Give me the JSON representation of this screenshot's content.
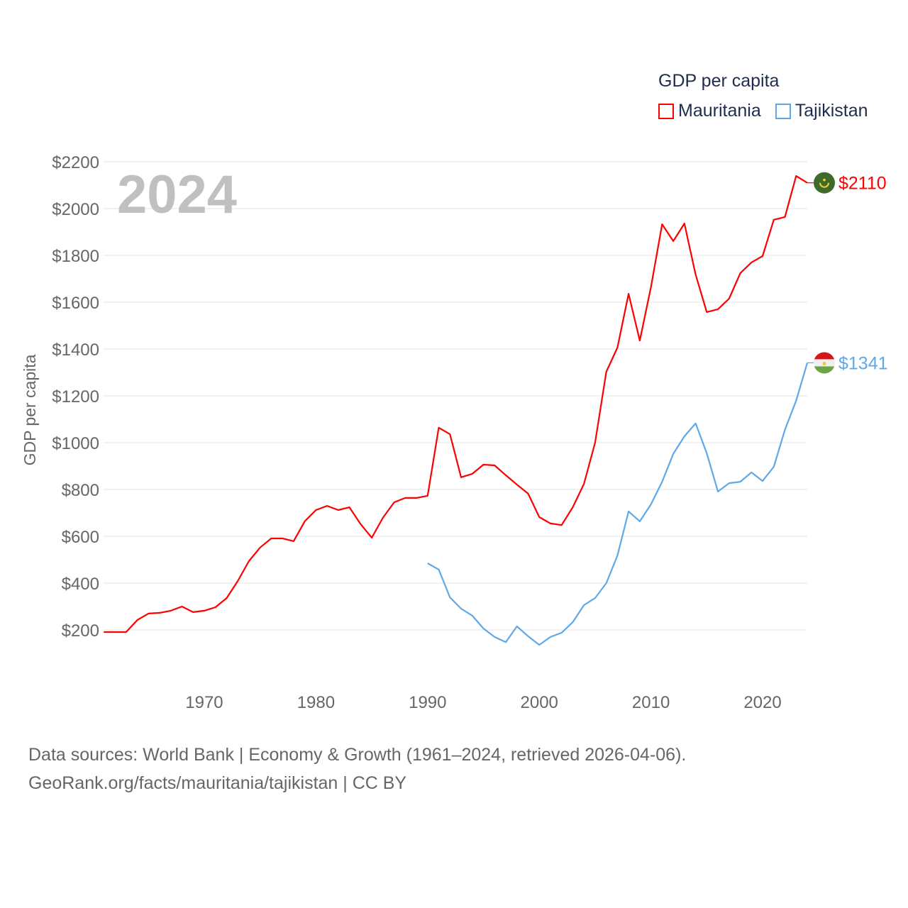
{
  "chart_data": {
    "type": "line",
    "title": "GDP per capita",
    "year_label": "2024",
    "ylabel": "GDP per capita",
    "xlabel": "",
    "ylim": [
      0,
      2200
    ],
    "xlim": [
      1961,
      2024
    ],
    "yticks": [
      200,
      400,
      600,
      800,
      1000,
      1200,
      1400,
      1600,
      1800,
      2000,
      2200
    ],
    "ytick_labels": [
      "$200",
      "$400",
      "$600",
      "$800",
      "$1000",
      "$1200",
      "$1400",
      "$1600",
      "$1800",
      "$2000",
      "$2200"
    ],
    "xticks": [
      1970,
      1980,
      1990,
      2000,
      2010,
      2020
    ],
    "xtick_labels": [
      "1970",
      "1980",
      "1990",
      "2000",
      "2010",
      "2020"
    ],
    "grid": true,
    "legend_position": "top-right",
    "series": [
      {
        "name": "Mauritania",
        "color": "#ff0000",
        "end_label": "$2110",
        "flag_colors": [
          "#3f6b2a",
          "#f4d03f"
        ],
        "x": [
          1961,
          1962,
          1963,
          1964,
          1965,
          1966,
          1967,
          1968,
          1969,
          1970,
          1971,
          1972,
          1973,
          1974,
          1975,
          1976,
          1977,
          1978,
          1979,
          1980,
          1981,
          1982,
          1983,
          1984,
          1985,
          1986,
          1987,
          1988,
          1989,
          1990,
          1991,
          1992,
          1993,
          1994,
          1995,
          1996,
          1997,
          1998,
          1999,
          2000,
          2001,
          2002,
          2003,
          2004,
          2005,
          2006,
          2007,
          2008,
          2009,
          2010,
          2011,
          2012,
          2013,
          2014,
          2015,
          2016,
          2017,
          2018,
          2019,
          2020,
          2021,
          2022,
          2023,
          2024
        ],
        "values": [
          191,
          191,
          191,
          242,
          270,
          273,
          282,
          300,
          276,
          282,
          297,
          336,
          409,
          494,
          552,
          591,
          591,
          579,
          664,
          712,
          730,
          712,
          724,
          652,
          594,
          679,
          745,
          764,
          764,
          773,
          1064,
          1036,
          852,
          867,
          906,
          903,
          861,
          821,
          782,
          682,
          655,
          648,
          724,
          824,
          1000,
          1303,
          1406,
          1636,
          1436,
          1664,
          1933,
          1861,
          1936,
          1718,
          1558,
          1570,
          1615,
          1724,
          1770,
          1797,
          1952,
          1964,
          2139,
          2110
        ]
      },
      {
        "name": "Tajikistan",
        "color": "#5fa8e8",
        "end_label": "$1341",
        "flag_colors": [
          "#d7141a",
          "#f0f0f0",
          "#6da544"
        ],
        "x": [
          1990,
          1991,
          1992,
          1993,
          1994,
          1995,
          1996,
          1997,
          1998,
          1999,
          2000,
          2001,
          2002,
          2003,
          2004,
          2005,
          2006,
          2007,
          2008,
          2009,
          2010,
          2011,
          2012,
          2013,
          2014,
          2015,
          2016,
          2017,
          2018,
          2019,
          2020,
          2021,
          2022,
          2023,
          2024
        ],
        "values": [
          485,
          458,
          339,
          291,
          261,
          206,
          170,
          148,
          215,
          173,
          136,
          170,
          188,
          233,
          306,
          336,
          400,
          518,
          706,
          664,
          736,
          833,
          952,
          1027,
          1082,
          955,
          791,
          827,
          833,
          873,
          836,
          897,
          1055,
          1179,
          1341
        ]
      }
    ]
  },
  "footer": {
    "line1": "Data sources: World Bank | Economy & Growth (1961–2024, retrieved 2026-04-06).",
    "line2": "GeoRank.org/facts/mauritania/tajikistan | CC BY"
  }
}
